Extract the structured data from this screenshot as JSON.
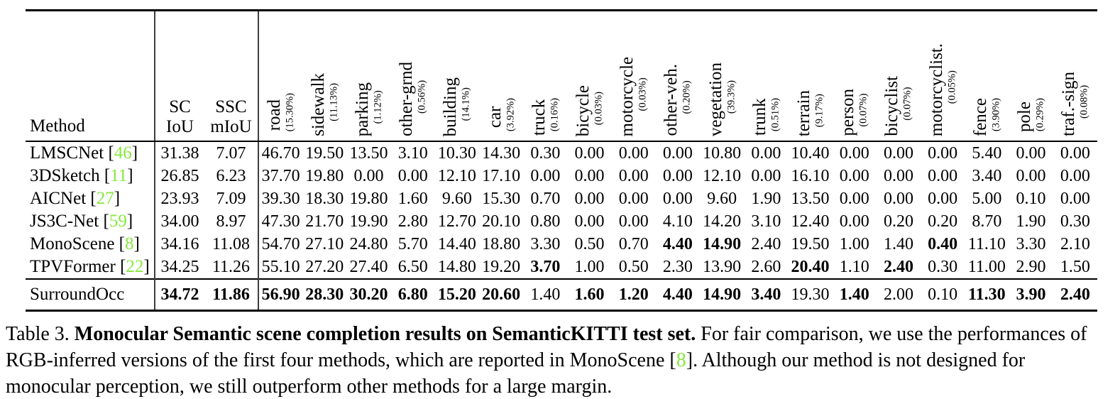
{
  "colors": {
    "citation_green": "#87e83e"
  },
  "table": {
    "method_header": "Method",
    "sc_header": [
      "SC",
      "IoU"
    ],
    "ssc_header": [
      "SSC",
      "mIoU"
    ],
    "classes": [
      {
        "name": "road",
        "share": "(15.30%)"
      },
      {
        "name": "sidewalk",
        "share": "(11.13%)"
      },
      {
        "name": "parking",
        "share": "(1.12%)"
      },
      {
        "name": "other-grnd",
        "share": "(0.56%)"
      },
      {
        "name": "building",
        "share": "(14.1%)"
      },
      {
        "name": "car",
        "share": "(3.92%)"
      },
      {
        "name": "truck",
        "share": "(0.16%)"
      },
      {
        "name": "bicycle",
        "share": "(0.03%)"
      },
      {
        "name": "motorcycle",
        "share": "(0.03%)"
      },
      {
        "name": "other-veh.",
        "share": "(0.20%)"
      },
      {
        "name": "vegetation",
        "share": "(39.3%)"
      },
      {
        "name": "trunk",
        "share": "(0.51%)"
      },
      {
        "name": "terrain",
        "share": "(9.17%)"
      },
      {
        "name": "person",
        "share": "(0.07%)"
      },
      {
        "name": "bicyclist",
        "share": "(0.07%)"
      },
      {
        "name": "motorcyclist.",
        "share": "(0.05%)"
      },
      {
        "name": "fence",
        "share": "(3.90%)"
      },
      {
        "name": "pole",
        "share": "(0.29%)"
      },
      {
        "name": "traf.-sign",
        "share": "(0.08%)"
      }
    ],
    "rows": [
      {
        "method": "LMSCNet",
        "cite": "46",
        "sc": "31.38",
        "ssc": "7.07",
        "bold_sc": false,
        "bold_ssc": false,
        "ours": false,
        "values": [
          "46.70",
          "19.50",
          "13.50",
          "3.10",
          "10.30",
          "14.30",
          "0.30",
          "0.00",
          "0.00",
          "0.00",
          "10.80",
          "0.00",
          "10.40",
          "0.00",
          "0.00",
          "0.00",
          "5.40",
          "0.00",
          "0.00"
        ],
        "bold": []
      },
      {
        "method": "3DSketch",
        "cite": "11",
        "sc": "26.85",
        "ssc": "6.23",
        "bold_sc": false,
        "bold_ssc": false,
        "ours": false,
        "values": [
          "37.70",
          "19.80",
          "0.00",
          "0.00",
          "12.10",
          "17.10",
          "0.00",
          "0.00",
          "0.00",
          "0.00",
          "12.10",
          "0.00",
          "16.10",
          "0.00",
          "0.00",
          "0.00",
          "3.40",
          "0.00",
          "0.00"
        ],
        "bold": []
      },
      {
        "method": "AICNet",
        "cite": "27",
        "sc": "23.93",
        "ssc": "7.09",
        "bold_sc": false,
        "bold_ssc": false,
        "ours": false,
        "values": [
          "39.30",
          "18.30",
          "19.80",
          "1.60",
          "9.60",
          "15.30",
          "0.70",
          "0.00",
          "0.00",
          "0.00",
          "9.60",
          "1.90",
          "13.50",
          "0.00",
          "0.00",
          "0.00",
          "5.00",
          "0.10",
          "0.00"
        ],
        "bold": []
      },
      {
        "method": "JS3C-Net",
        "cite": "59",
        "sc": "34.00",
        "ssc": "8.97",
        "bold_sc": false,
        "bold_ssc": false,
        "ours": false,
        "values": [
          "47.30",
          "21.70",
          "19.90",
          "2.80",
          "12.70",
          "20.10",
          "0.80",
          "0.00",
          "0.00",
          "4.10",
          "14.20",
          "3.10",
          "12.40",
          "0.00",
          "0.20",
          "0.20",
          "8.70",
          "1.90",
          "0.30"
        ],
        "bold": []
      },
      {
        "method": "MonoScene",
        "cite": "8",
        "sc": "34.16",
        "ssc": "11.08",
        "bold_sc": false,
        "bold_ssc": false,
        "ours": false,
        "values": [
          "54.70",
          "27.10",
          "24.80",
          "5.70",
          "14.40",
          "18.80",
          "3.30",
          "0.50",
          "0.70",
          "4.40",
          "14.90",
          "2.40",
          "19.50",
          "1.00",
          "1.40",
          "0.40",
          "11.10",
          "3.30",
          "2.10"
        ],
        "bold": [
          9,
          10,
          15
        ]
      },
      {
        "method": "TPVFormer",
        "cite": "22",
        "sc": "34.25",
        "ssc": "11.26",
        "bold_sc": false,
        "bold_ssc": false,
        "ours": false,
        "values": [
          "55.10",
          "27.20",
          "27.40",
          "6.50",
          "14.80",
          "19.20",
          "3.70",
          "1.00",
          "0.50",
          "2.30",
          "13.90",
          "2.60",
          "20.40",
          "1.10",
          "2.40",
          "0.30",
          "11.00",
          "2.90",
          "1.50"
        ],
        "bold": [
          6,
          12,
          14
        ]
      },
      {
        "method": "SurroundOcc",
        "cite": null,
        "sc": "34.72",
        "ssc": "11.86",
        "bold_sc": true,
        "bold_ssc": true,
        "ours": true,
        "values": [
          "56.90",
          "28.30",
          "30.20",
          "6.80",
          "15.20",
          "20.60",
          "1.40",
          "1.60",
          "1.20",
          "4.40",
          "14.90",
          "3.40",
          "19.30",
          "1.40",
          "2.00",
          "0.10",
          "11.30",
          "3.90",
          "2.40"
        ],
        "bold": [
          0,
          1,
          2,
          3,
          4,
          5,
          7,
          8,
          9,
          10,
          11,
          13,
          16,
          17,
          18
        ]
      }
    ]
  },
  "caption": {
    "label": "Table 3. ",
    "title_bold": "Monocular Semantic scene completion results on SemanticKITTI test set.",
    "body_1": " For fair comparison, we use the performances of RGB-inferred versions of the first four methods, which are reported in MonoScene [",
    "cite": "8",
    "body_2": "]. Although our method is not designed for monocular perception, we still outperform other methods for a large margin."
  }
}
